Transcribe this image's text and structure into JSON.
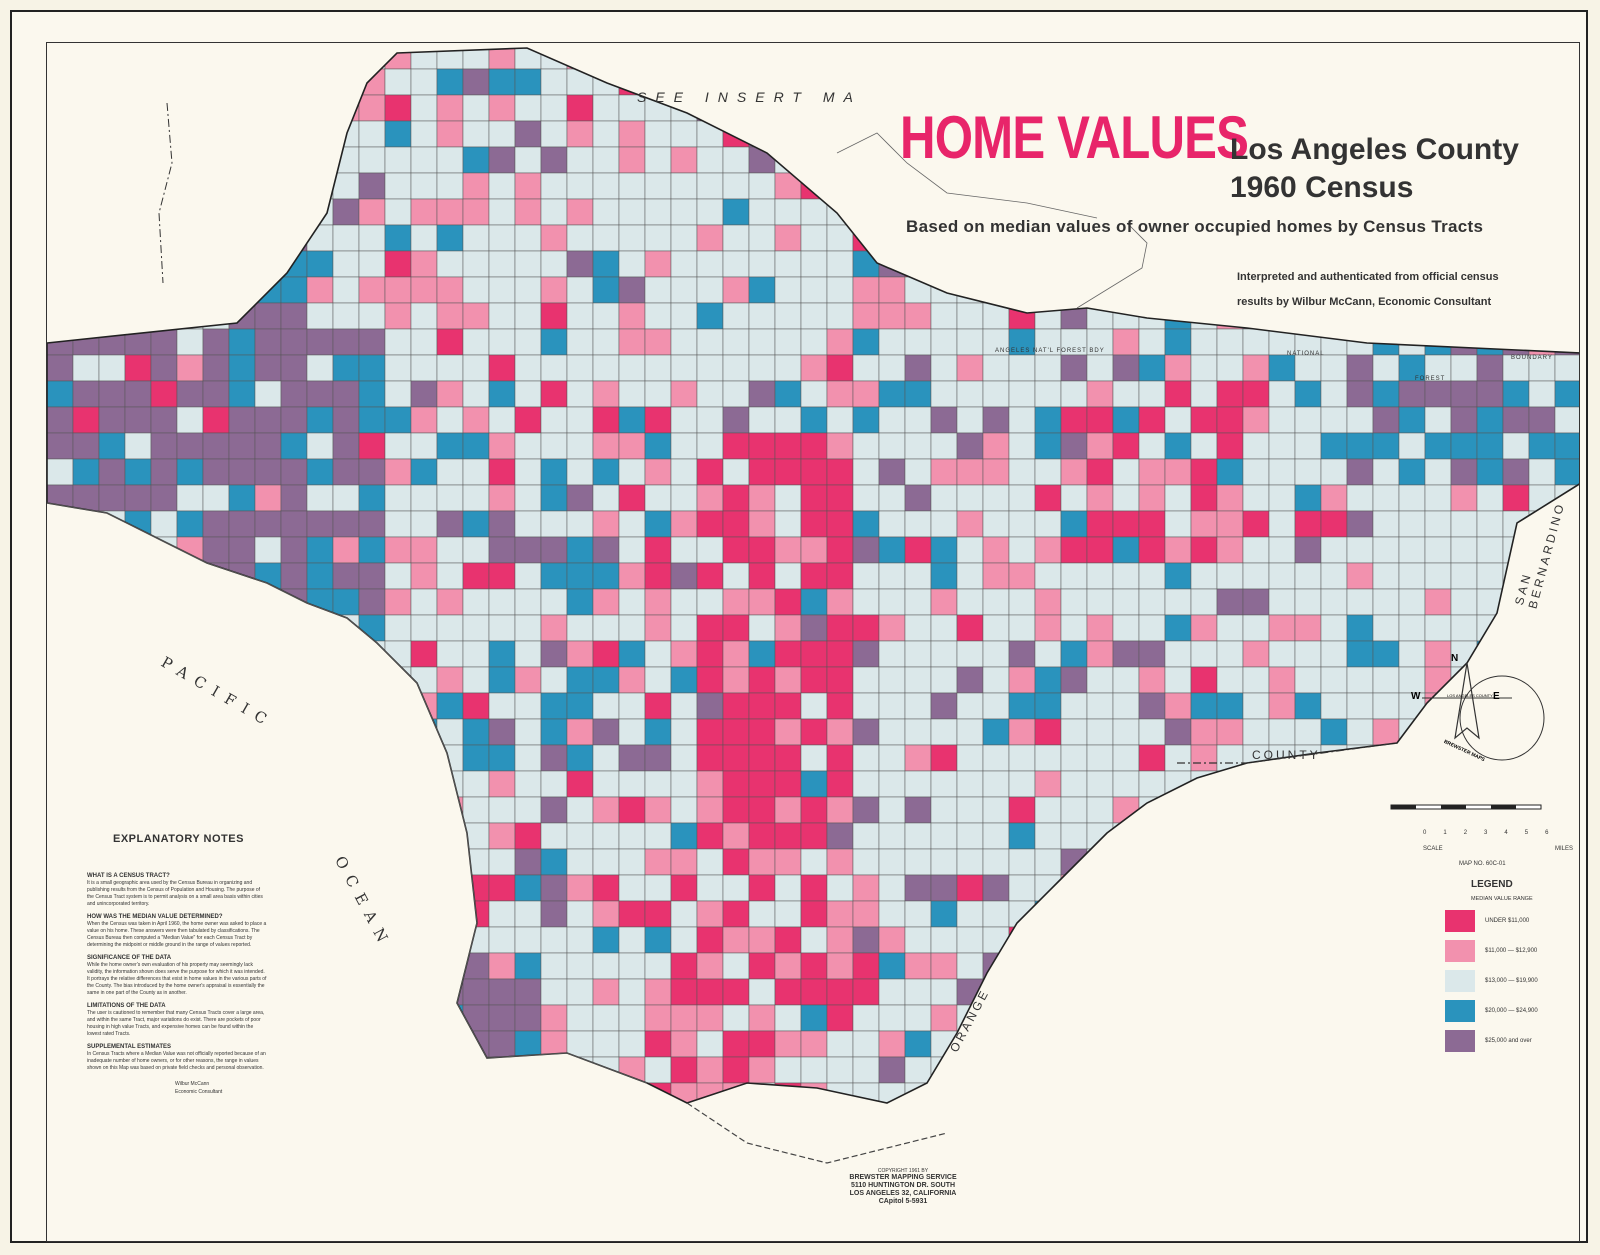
{
  "title": {
    "main": "HOME VALUES",
    "county": "Los Angeles County",
    "census": "1960 Census",
    "based": "Based on median values of owner occupied homes by Census Tracts",
    "interp_line1": "Interpreted and authenticated from official census",
    "interp_line2": "results by Wilbur McCann, Economic Consultant"
  },
  "map_labels": {
    "see_insert": "SEE INSERT MA",
    "pacific": "PACIFIC",
    "ocean": "OCEAN",
    "orange": "ORANGE",
    "county": "COUNTY",
    "san_bernardino": "SAN BERNARDINO",
    "forest_boundary": "ANGELES NAT'L FOREST BDY",
    "national": "NATIONAL",
    "forest": "FOREST",
    "boundary": "BOUNDARY"
  },
  "notes": {
    "heading": "EXPLANATORY NOTES",
    "sections": [
      {
        "q": "WHAT IS A CENSUS TRACT?",
        "a": "It is a small geographic area used by the Census Bureau in organizing and publishing results from the Census of Population and Housing. The purpose of the Census Tract system is to permit analysis on a small area basis within cities and unincorporated territory."
      },
      {
        "q": "HOW WAS THE MEDIAN VALUE DETERMINED?",
        "a": "When the Census was taken in April 1960, the home owner was asked to place a value on his home. These answers were then tabulated by classifications. The Census Bureau then computed a \"Median Value\" for each Census Tract by determining the midpoint or middle ground in the range of values reported."
      },
      {
        "q": "SIGNIFICANCE OF THE DATA",
        "a": "While the home owner's own evaluation of his property may seemingly lack validity, the information shown does serve the purpose for which it was intended. It portrays the relative differences that exist in home values in the various parts of the County. The bias introduced by the home owner's appraisal is essentially the same in one part of the County as in another."
      },
      {
        "q": "LIMITATIONS OF THE DATA",
        "a": "The user is cautioned to remember that many Census Tracts cover a large area, and within the same Tract, major variations do exist. There are pockets of poor housing in high value Tracts, and expensive homes can be found within the lowest rated Tracts."
      },
      {
        "q": "SUPPLEMENTAL ESTIMATES",
        "a": "In Census Tracts where a Median Value was not officially reported because of an inadequate number of home owners, or for other reasons, the range in values shown on this Map was based on private field checks and personal observation."
      }
    ],
    "sig1": "Wilbur McCann",
    "sig2": "Economic Consultant"
  },
  "legend": {
    "title": "LEGEND",
    "subtitle": "MEDIAN VALUE RANGE",
    "items": [
      {
        "label": "UNDER $11,000",
        "color": "#e8336f"
      },
      {
        "label": "$11,000 — $12,900",
        "color": "#f291ae"
      },
      {
        "label": "$13,000 — $19,900",
        "color": "#dbe8ea"
      },
      {
        "label": "$20,000 — $24,900",
        "color": "#2a93bd"
      },
      {
        "label": "$25,000 and over",
        "color": "#8c6a94"
      }
    ]
  },
  "scale": {
    "ticks": [
      "0",
      "1",
      "2",
      "3",
      "4",
      "5",
      "6"
    ],
    "left": "SCALE",
    "right": "MILES"
  },
  "compass": {
    "n": "N",
    "w": "W",
    "e": "E",
    "badge": "BREWSTER MAPS",
    "inset": "LOS ANGELES COUNTY"
  },
  "map_no": "MAP NO. 60C-01",
  "copyright": {
    "line1": "COPYRIGHT 1961 BY",
    "line2": "BREWSTER MAPPING SERVICE",
    "line3": "5110 HUNTINGTON DR. SOUTH",
    "line4": "LOS ANGELES 32, CALIFORNIA",
    "line5": "CApitol 5-5931"
  }
}
